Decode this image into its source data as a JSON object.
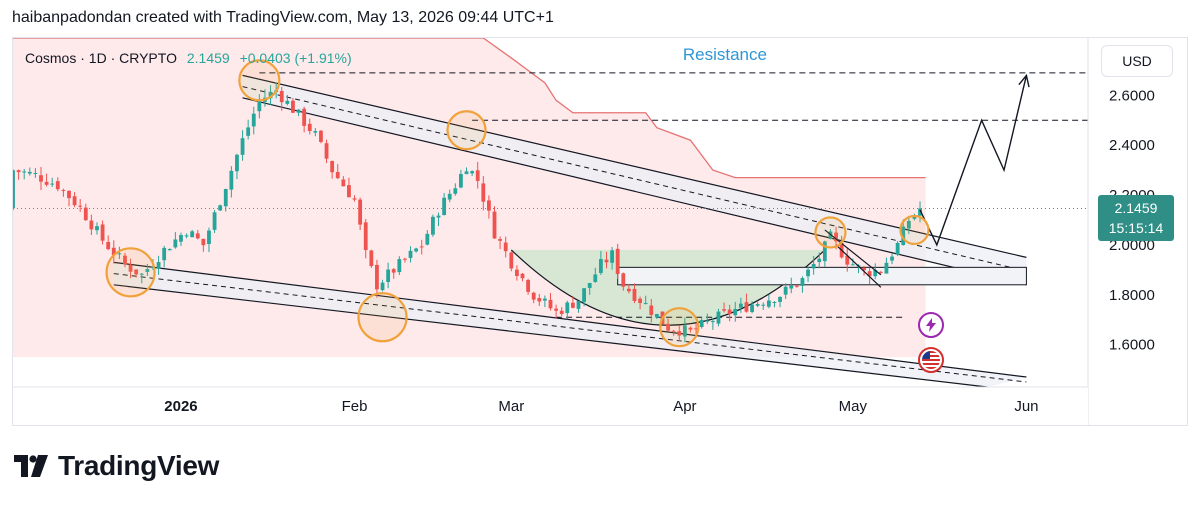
{
  "header": {
    "caption": "haibanpadondan created with TradingView.com, May 13, 2026 09:44 UTC+1"
  },
  "legend": {
    "symbol": "Cosmos · 1D · CRYPTO",
    "last": "2.1459",
    "change": "+0.0403 (+1.91%)"
  },
  "toolbar": {
    "currency": "USD"
  },
  "price_tag": {
    "price": "2.1459",
    "countdown": "15:15:14"
  },
  "annotation": {
    "resistance": "Resistance"
  },
  "brand": {
    "name": "TradingView",
    "logo_icon": "tradingview-logo-icon"
  },
  "events": [
    "lightning-icon",
    "us-flag-icon"
  ],
  "colors": {
    "up": "#26a69a",
    "down": "#ef5350",
    "resistance_fill": "#fde2e4",
    "resistance_line": "#e57373",
    "accent": "#2f96d6",
    "highlight_circle": "#f0a13a"
  },
  "chart_data": {
    "type": "candlestick",
    "title": "Cosmos · 1D · CRYPTO",
    "y_ticks": [
      "1.6000",
      "1.8000",
      "2.0000",
      "2.2000",
      "2.4000",
      "2.6000"
    ],
    "x_ticks": [
      {
        "label": "2026",
        "date": "2026-01-01"
      },
      {
        "label": "Feb",
        "date": "2026-02-01"
      },
      {
        "label": "Mar",
        "date": "2026-03-01"
      },
      {
        "label": "Apr",
        "date": "2026-04-01"
      },
      {
        "label": "May",
        "date": "2026-05-01"
      },
      {
        "label": "Jun",
        "date": "2026-06-01"
      }
    ],
    "ylim": [
      1.43,
      2.83
    ],
    "xlim": [
      "2025-12-02",
      "2026-06-12"
    ],
    "last_price": 2.1459,
    "close_path": [
      [
        "2025-12-02",
        2.3
      ],
      [
        "2025-12-06",
        2.28
      ],
      [
        "2025-12-10",
        2.24
      ],
      [
        "2025-12-14",
        2.15
      ],
      [
        "2025-12-18",
        2.02
      ],
      [
        "2025-12-22",
        1.92
      ],
      [
        "2025-12-25",
        1.88
      ],
      [
        "2025-12-29",
        1.98
      ],
      [
        "2026-01-02",
        2.06
      ],
      [
        "2026-01-05",
        2.0
      ],
      [
        "2026-01-08",
        2.18
      ],
      [
        "2026-01-12",
        2.42
      ],
      [
        "2026-01-15",
        2.58
      ],
      [
        "2026-01-18",
        2.62
      ],
      [
        "2026-01-22",
        2.52
      ],
      [
        "2026-01-25",
        2.44
      ],
      [
        "2026-01-28",
        2.3
      ],
      [
        "2026-02-01",
        2.18
      ],
      [
        "2026-02-03",
        1.96
      ],
      [
        "2026-02-05",
        1.84
      ],
      [
        "2026-02-07",
        1.88
      ],
      [
        "2026-02-10",
        1.94
      ],
      [
        "2026-02-13",
        2.0
      ],
      [
        "2026-02-16",
        2.14
      ],
      [
        "2026-02-19",
        2.24
      ],
      [
        "2026-02-21",
        2.32
      ],
      [
        "2026-02-23",
        2.26
      ],
      [
        "2026-02-26",
        2.05
      ],
      [
        "2026-03-01",
        1.93
      ],
      [
        "2026-03-05",
        1.8
      ],
      [
        "2026-03-09",
        1.73
      ],
      [
        "2026-03-13",
        1.78
      ],
      [
        "2026-03-17",
        1.92
      ],
      [
        "2026-03-19",
        1.96
      ],
      [
        "2026-03-21",
        1.84
      ],
      [
        "2026-03-25",
        1.76
      ],
      [
        "2026-03-29",
        1.67
      ],
      [
        "2026-04-02",
        1.65
      ],
      [
        "2026-04-06",
        1.7
      ],
      [
        "2026-04-10",
        1.74
      ],
      [
        "2026-04-14",
        1.77
      ],
      [
        "2026-04-18",
        1.8
      ],
      [
        "2026-04-22",
        1.86
      ],
      [
        "2026-04-25",
        1.95
      ],
      [
        "2026-04-27",
        2.03
      ],
      [
        "2026-04-30",
        1.94
      ],
      [
        "2026-05-03",
        1.89
      ],
      [
        "2026-05-06",
        1.9
      ],
      [
        "2026-05-09",
        2.0
      ],
      [
        "2026-05-11",
        2.1
      ],
      [
        "2026-05-13",
        2.1459
      ]
    ],
    "resistance_cloud_top": [
      [
        "2025-12-02",
        2.83
      ],
      [
        "2026-02-24",
        2.83
      ],
      [
        "2026-03-01",
        2.75
      ],
      [
        "2026-03-04",
        2.7
      ],
      [
        "2026-03-07",
        2.65
      ],
      [
        "2026-03-09",
        2.58
      ],
      [
        "2026-03-12",
        2.53
      ],
      [
        "2026-03-25",
        2.53
      ],
      [
        "2026-03-27",
        2.47
      ],
      [
        "2026-04-02",
        2.42
      ],
      [
        "2026-04-06",
        2.3
      ],
      [
        "2026-04-10",
        2.27
      ],
      [
        "2026-05-14",
        2.27
      ]
    ],
    "horizontal_levels": [
      2.69,
      2.5,
      1.71
    ],
    "channels": [
      {
        "upper_start": [
          "2026-01-12",
          2.68
        ],
        "upper_end": [
          "2026-06-01",
          1.95
        ],
        "lower_start": [
          "2026-01-12",
          2.59
        ],
        "lower_end": [
          "2026-06-01",
          1.84
        ]
      },
      {
        "upper_start": [
          "2025-12-20",
          1.93
        ],
        "upper_end": [
          "2026-06-01",
          1.47
        ],
        "lower_start": [
          "2025-12-20",
          1.84
        ],
        "lower_end": [
          "2026-05-25",
          1.43
        ]
      }
    ],
    "range_box": {
      "start": "2026-03-20",
      "end": "2026-06-01",
      "top": 1.91,
      "bottom": 1.84
    },
    "cup_area": {
      "start": "2026-03-01",
      "end": "2026-04-26",
      "rim": 1.98,
      "bottom": 1.59
    },
    "projection": [
      [
        "2026-05-13",
        2.14
      ],
      [
        "2026-05-16",
        2.0
      ],
      [
        "2026-05-24",
        2.5
      ],
      [
        "2026-05-28",
        2.3
      ],
      [
        "2026-06-01",
        2.68
      ]
    ],
    "highlight_points": [
      [
        "2025-12-23",
        1.89
      ],
      [
        "2026-01-15",
        2.66
      ],
      [
        "2026-02-06",
        1.71
      ],
      [
        "2026-02-21",
        2.46
      ],
      [
        "2026-03-31",
        1.67
      ],
      [
        "2026-04-27",
        2.05
      ],
      [
        "2026-05-12",
        2.06
      ]
    ]
  }
}
